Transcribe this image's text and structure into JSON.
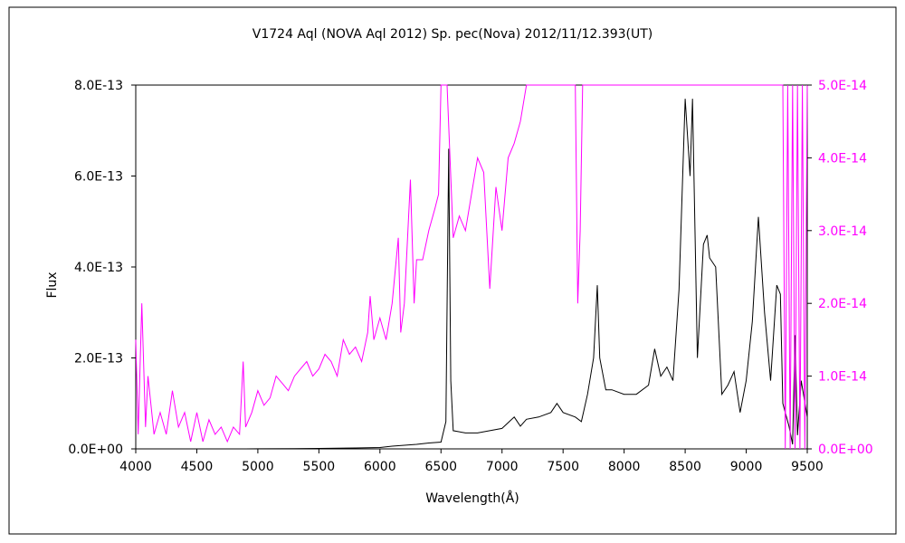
{
  "chart_data": {
    "type": "line",
    "title": "V1724 Aql (NOVA Aql 2012)    Sp. pec(Nova)    2012/11/12.393(UT)",
    "xlabel": "Wavelength(Å)",
    "ylabel": "Flux",
    "xlim": [
      4000,
      9500
    ],
    "ylim": [
      0,
      8e-13
    ],
    "y2lim": [
      0,
      5e-14
    ],
    "grid": false,
    "x_ticks": [
      "4000",
      "4500",
      "5000",
      "5500",
      "6000",
      "6500",
      "7000",
      "7500",
      "8000",
      "8500",
      "9000",
      "9500"
    ],
    "y_ticks": [
      "0.0E+00",
      "2.0E-13",
      "4.0E-13",
      "6.0E-13",
      "8.0E-13"
    ],
    "y2_ticks": [
      "0.0E+00",
      "1.0E-14",
      "2.0E-14",
      "3.0E-14",
      "4.0E-14",
      "5.0E-14"
    ],
    "colors": {
      "primary": "#000000",
      "secondary": "#ff00ff"
    },
    "series": [
      {
        "axis": "left",
        "x": [
          4000,
          4500,
          4900,
          5000,
          5300,
          5500,
          5800,
          6000,
          6100,
          6200,
          6300,
          6400,
          6500,
          6540,
          6563,
          6580,
          6600,
          6700,
          6800,
          6900,
          7000,
          7100,
          7150,
          7200,
          7300,
          7400,
          7450,
          7500,
          7600,
          7650,
          7700,
          7750,
          7780,
          7800,
          7850,
          7900,
          8000,
          8100,
          8200,
          8250,
          8300,
          8350,
          8400,
          8450,
          8500,
          8540,
          8560,
          8600,
          8650,
          8680,
          8700,
          8750,
          8800,
          8850,
          8900,
          8950,
          9000,
          9050,
          9100,
          9150,
          9200,
          9250,
          9280,
          9300,
          9350,
          9380,
          9400,
          9420,
          9450,
          9500
        ],
        "y": [
          0,
          0,
          0,
          2e-16,
          5e-16,
          1e-15,
          2e-15,
          3e-15,
          6e-15,
          8e-15,
          1e-14,
          1.3e-14,
          1.5e-14,
          6e-14,
          6.6e-13,
          1.5e-13,
          4e-14,
          3.5e-14,
          3.5e-14,
          4e-14,
          4.5e-14,
          7e-14,
          5e-14,
          6.5e-14,
          7e-14,
          8e-14,
          1e-13,
          8e-14,
          7e-14,
          6e-14,
          1.2e-13,
          2e-13,
          3.6e-13,
          2e-13,
          1.3e-13,
          1.3e-13,
          1.2e-13,
          1.2e-13,
          1.4e-13,
          2.2e-13,
          1.6e-13,
          1.8e-13,
          1.5e-13,
          3.5e-13,
          7.7e-13,
          6e-13,
          7.7e-13,
          2e-13,
          4.5e-13,
          4.7e-13,
          4.2e-13,
          4e-13,
          1.2e-13,
          1.4e-13,
          1.7e-13,
          8e-14,
          1.5e-13,
          2.8e-13,
          5.1e-13,
          3e-13,
          1.5e-13,
          3.6e-13,
          3.4e-13,
          1e-13,
          5e-14,
          1e-14,
          2.5e-13,
          3e-14,
          1.5e-13,
          7e-14
        ]
      },
      {
        "axis": "right",
        "x": [
          4000,
          4020,
          4050,
          4080,
          4100,
          4150,
          4200,
          4250,
          4300,
          4350,
          4400,
          4450,
          4500,
          4550,
          4600,
          4650,
          4700,
          4750,
          4800,
          4850,
          4880,
          4900,
          4950,
          5000,
          5050,
          5100,
          5150,
          5200,
          5250,
          5300,
          5350,
          5400,
          5450,
          5500,
          5550,
          5600,
          5650,
          5700,
          5750,
          5800,
          5850,
          5900,
          5920,
          5950,
          6000,
          6050,
          6100,
          6150,
          6170,
          6200,
          6250,
          6280,
          6300,
          6350,
          6400,
          6450,
          6480,
          6500,
          6520,
          6550,
          6600,
          6650,
          6700,
          6750,
          6800,
          6850,
          6900,
          6950,
          7000,
          7050,
          7100,
          7150,
          7200,
          7250,
          7300,
          7600,
          7620,
          7640,
          7660,
          7700,
          9300,
          9320,
          9340,
          9360,
          9380,
          9400,
          9420,
          9440,
          9460,
          9480,
          9500
        ],
        "y": [
          1.5e-14,
          2e-15,
          2e-14,
          3e-15,
          1e-14,
          2e-15,
          5e-15,
          2e-15,
          8e-15,
          3e-15,
          5e-15,
          1e-15,
          5e-15,
          1e-15,
          4e-15,
          2e-15,
          3e-15,
          1e-15,
          3e-15,
          2e-15,
          1.2e-14,
          3e-15,
          5e-15,
          8e-15,
          6e-15,
          7e-15,
          1e-14,
          9e-15,
          8e-15,
          1e-14,
          1.1e-14,
          1.2e-14,
          1e-14,
          1.1e-14,
          1.3e-14,
          1.2e-14,
          1e-14,
          1.5e-14,
          1.3e-14,
          1.4e-14,
          1.2e-14,
          1.6e-14,
          2.1e-14,
          1.5e-14,
          1.8e-14,
          1.5e-14,
          2e-14,
          2.9e-14,
          1.6e-14,
          2e-14,
          3.7e-14,
          2e-14,
          2.6e-14,
          2.6e-14,
          3e-14,
          3.3e-14,
          3.5e-14,
          5e-14,
          5e-14,
          5e-14,
          2.9e-14,
          3.2e-14,
          3e-14,
          3.5e-14,
          4e-14,
          3.8e-14,
          2.2e-14,
          3.6e-14,
          3e-14,
          4e-14,
          4.2e-14,
          4.5e-14,
          5e-14,
          5e-14,
          5e-14,
          5e-14,
          2e-14,
          3e-14,
          5e-14,
          5e-14,
          5e-14,
          0.0,
          5e-14,
          0.0,
          5e-14,
          0.0,
          5e-14,
          0.0,
          5e-14,
          0.0,
          5e-14
        ]
      }
    ]
  }
}
